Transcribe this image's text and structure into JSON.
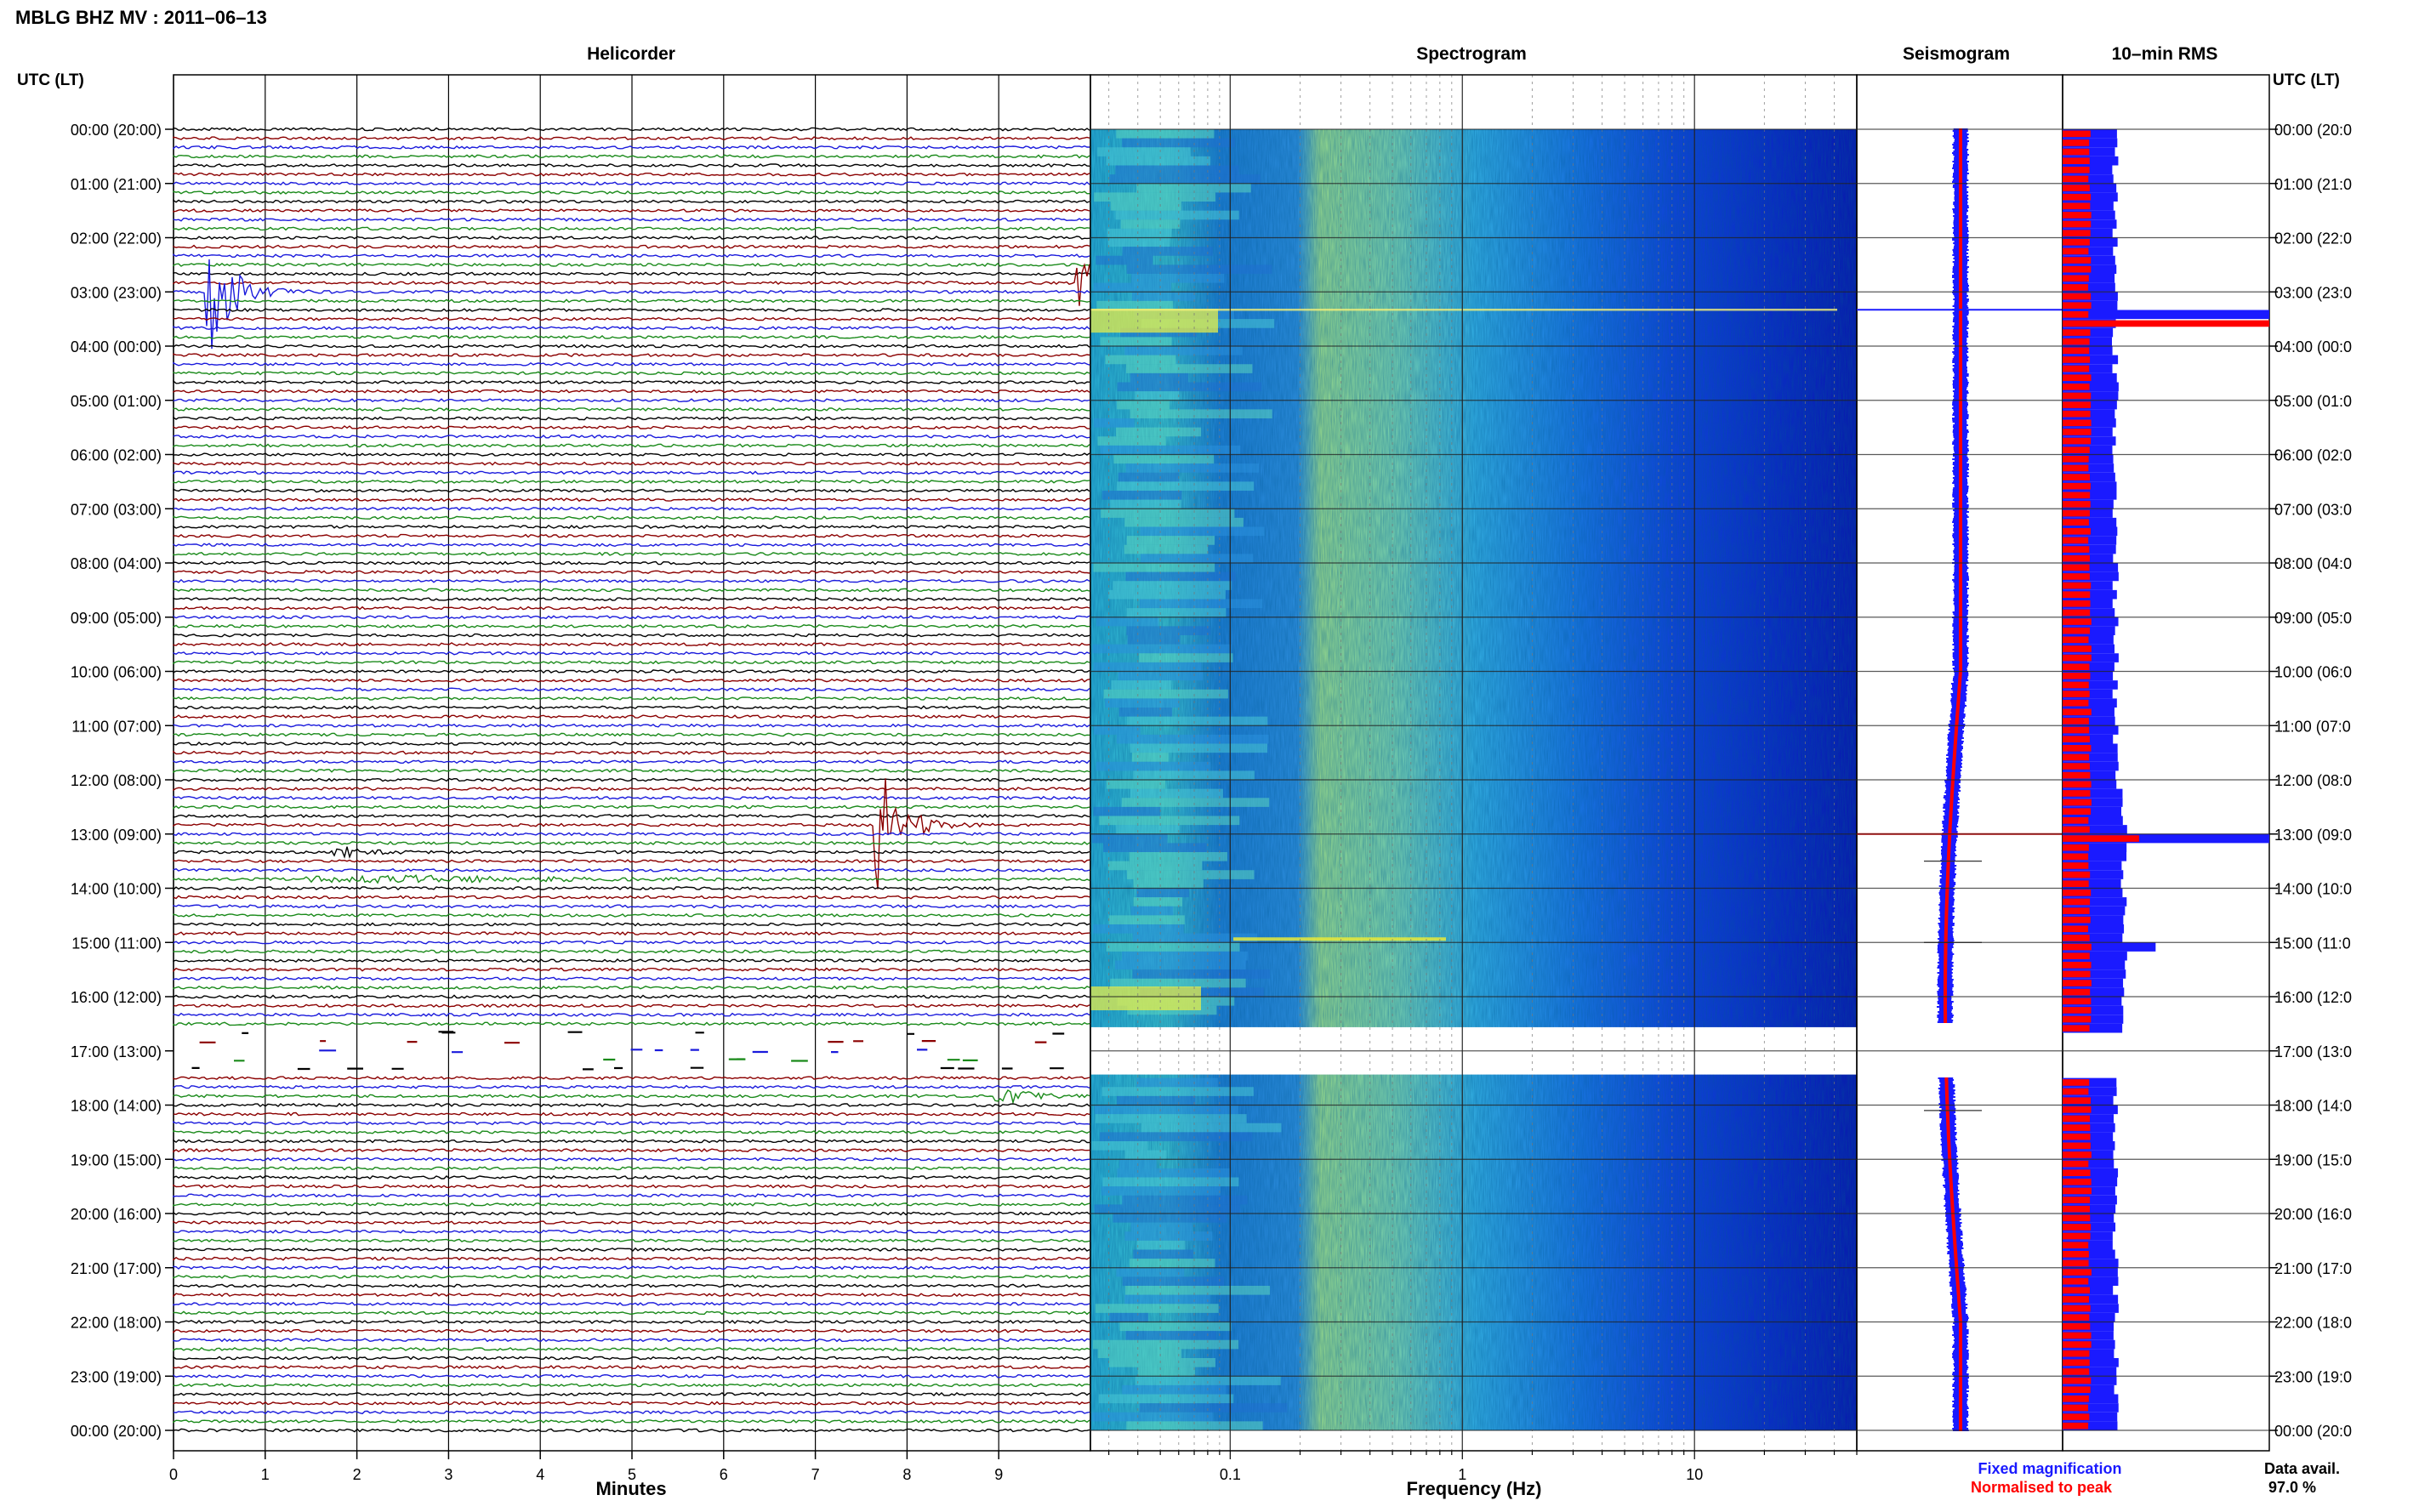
{
  "header": {
    "title": "MBLG BHZ MV : 2011–06–13",
    "time_label_left": "UTC (LT)",
    "time_label_right": "UTC (LT)"
  },
  "panels": {
    "helicorder": "Helicorder",
    "spectrogram": "Spectrogram",
    "seismogram": "Seismogram",
    "rms": "10–min RMS"
  },
  "footer": {
    "minutes_label": "Minutes",
    "frequency_label": "Frequency (Hz)",
    "legend_fixed": "Fixed magnification",
    "legend_normalised": "Normalised to peak",
    "data_avail_label": "Data avail.",
    "data_avail_value": "97.0 %"
  },
  "colors": {
    "trace_cycle": [
      "#000000",
      "#8b0000",
      "#1a1adc",
      "#1a8a1a"
    ],
    "fixed": "#1a1aff",
    "normalised": "#ff0000",
    "grid": "#555555"
  },
  "chart_data": {
    "type": "helicorder",
    "time_ticks_left": [
      "00:00 (20:00)",
      "01:00 (21:00)",
      "02:00 (22:00)",
      "03:00 (23:00)",
      "04:00 (00:00)",
      "05:00 (01:00)",
      "06:00 (02:00)",
      "07:00 (03:00)",
      "08:00 (04:00)",
      "09:00 (05:00)",
      "10:00 (06:00)",
      "11:00 (07:00)",
      "12:00 (08:00)",
      "13:00 (09:00)",
      "14:00 (10:00)",
      "15:00 (11:00)",
      "16:00 (12:00)",
      "17:00 (13:00)",
      "18:00 (14:00)",
      "19:00 (15:00)",
      "20:00 (16:00)",
      "21:00 (17:00)",
      "22:00 (18:00)",
      "23:00 (19:00)",
      "00:00 (20:00)"
    ],
    "time_ticks_right": [
      "00:00 (20:0",
      "01:00 (21:0",
      "02:00 (22:0",
      "03:00 (23:0",
      "04:00 (00:0",
      "05:00 (01:0",
      "06:00 (02:0",
      "07:00 (03:0",
      "08:00 (04:0",
      "09:00 (05:0",
      "10:00 (06:0",
      "11:00 (07:0",
      "12:00 (08:0",
      "13:00 (09:0",
      "14:00 (10:0",
      "15:00 (11:0",
      "16:00 (12:0",
      "17:00 (13:0",
      "18:00 (14:0",
      "19:00 (15:0",
      "20:00 (16:0",
      "21:00 (17:0",
      "22:00 (18:0",
      "23:00 (19:0",
      "00:00 (20:0"
    ],
    "minutes_ticks": [
      "0",
      "1",
      "2",
      "3",
      "4",
      "5",
      "6",
      "7",
      "8",
      "9"
    ],
    "frequency_ticks": [
      "0.1",
      "1",
      "10"
    ],
    "frequency_range_hz": [
      0.025,
      50
    ],
    "minutes_range": [
      0,
      10
    ],
    "rows_per_hour": 6,
    "hours": 24,
    "data_gap_hours": [
      16.5,
      17.5
    ],
    "events": [
      {
        "hour": 3.0,
        "minute": 0.4,
        "amplitude": 3.5
      },
      {
        "hour": 2.83,
        "minute": 9.9,
        "amplitude": 1.5
      },
      {
        "hour": 12.83,
        "minute": 7.7,
        "amplitude": 3.5
      },
      {
        "hour": 13.33,
        "minute": 1.8,
        "amplitude": 0.4
      },
      {
        "hour": 17.83,
        "minute": 9.0,
        "amplitude": 0.7
      }
    ],
    "rms_fixed_peaks": [
      {
        "hour": 3.33,
        "value": 1.0
      },
      {
        "hour": 13.0,
        "value": 1.0
      },
      {
        "hour": 15.0,
        "value": 0.45
      }
    ],
    "rms_normalised_peaks": [
      {
        "hour": 3.5,
        "value": 1.0
      },
      {
        "hour": 13.0,
        "value": 0.37
      }
    ]
  }
}
